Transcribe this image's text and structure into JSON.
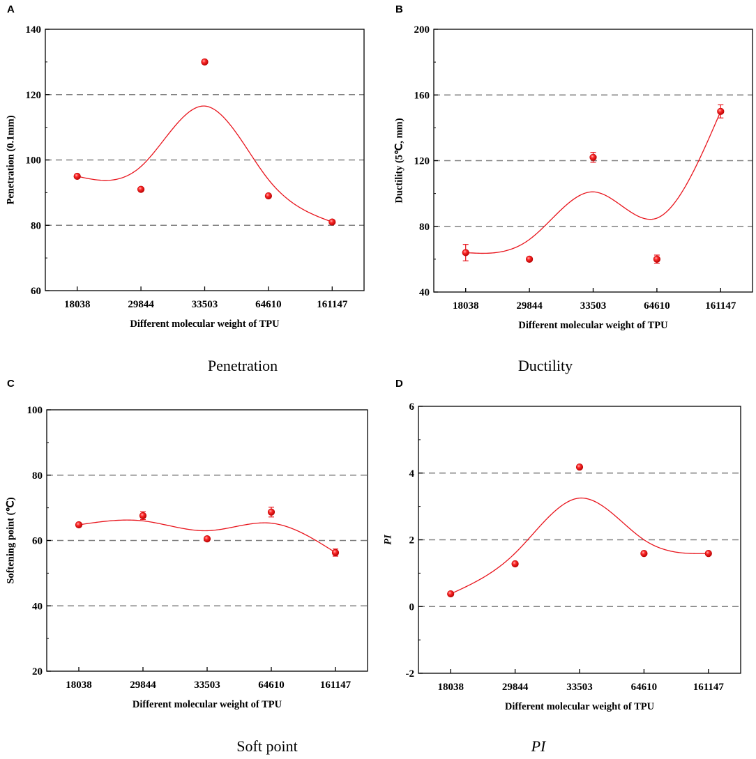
{
  "chart_data": [
    {
      "panel": "A",
      "type": "scatter",
      "caption": "Penetration",
      "xlabel": "Different molecular weight of TPU",
      "ylabel": "Penetration (0.1mm)",
      "categories": [
        "18038",
        "29844",
        "33503",
        "64610",
        "161147"
      ],
      "ylim": [
        60,
        140
      ],
      "yticks": [
        60,
        80,
        100,
        120,
        140
      ],
      "gridlines": [
        80,
        100,
        120
      ],
      "values": [
        95,
        91,
        130,
        89,
        81
      ],
      "errors": [
        0,
        0,
        0,
        0,
        0
      ],
      "fit": [
        95,
        98,
        116.5,
        94,
        81
      ]
    },
    {
      "panel": "B",
      "type": "scatter",
      "caption": "Ductility",
      "xlabel": "Different molecular weight of TPU",
      "ylabel": "Ductility (5℃, mm)",
      "categories": [
        "18038",
        "29844",
        "33503",
        "64610",
        "161147"
      ],
      "ylim": [
        40,
        200
      ],
      "yticks": [
        40,
        80,
        120,
        160,
        200
      ],
      "gridlines": [
        80,
        120,
        160
      ],
      "values": [
        64,
        60,
        122,
        60,
        150
      ],
      "errors": [
        5,
        0,
        3,
        2.5,
        4
      ],
      "fit": [
        64,
        72,
        101,
        85,
        150
      ]
    },
    {
      "panel": "C",
      "type": "scatter",
      "caption": "Soft point",
      "xlabel": "Different molecular weight of TPU",
      "ylabel": "Softening point (℃)",
      "categories": [
        "18038",
        "29844",
        "33503",
        "64610",
        "161147"
      ],
      "ylim": [
        20,
        100
      ],
      "yticks": [
        20,
        40,
        60,
        80,
        100
      ],
      "gridlines": [
        40,
        60,
        80
      ],
      "values": [
        64.8,
        67.6,
        60.5,
        68.7,
        56.3
      ],
      "errors": [
        0.5,
        1.2,
        0.5,
        1.5,
        1.1
      ],
      "fit": [
        64.8,
        66,
        63,
        65.3,
        56.3
      ]
    },
    {
      "panel": "D",
      "type": "scatter",
      "caption": "PI",
      "xlabel": "Different molecular weight of TPU",
      "ylabel": "PI",
      "categories": [
        "18038",
        "29844",
        "33503",
        "64610",
        "161147"
      ],
      "ylim": [
        -2,
        6
      ],
      "yticks": [
        -2,
        0,
        2,
        4,
        6
      ],
      "gridlines": [
        0,
        2,
        4
      ],
      "values": [
        0.38,
        1.28,
        4.18,
        1.59,
        1.59
      ],
      "errors": [
        0,
        0,
        0,
        0,
        0
      ],
      "fit": [
        0.38,
        1.6,
        3.25,
        2.0,
        1.59
      ]
    }
  ],
  "colors": {
    "marker": "#e8141c",
    "fit": "#e8141c",
    "grid": "#808080",
    "axis": "#000000"
  }
}
